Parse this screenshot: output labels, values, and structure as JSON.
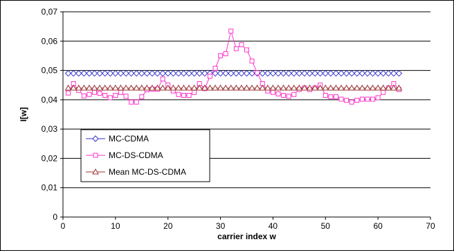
{
  "chart_data": {
    "type": "line",
    "xlabel": "carrier index w",
    "ylabel": "I[w]",
    "xlim": [
      0,
      70
    ],
    "ylim": [
      0,
      0.07
    ],
    "x_ticks": [
      "0",
      "10",
      "20",
      "30",
      "40",
      "50",
      "60",
      "70"
    ],
    "y_ticks": [
      "0",
      "0,01",
      "0,02",
      "0,03",
      "0,04",
      "0,05",
      "0,06",
      "0,07"
    ],
    "grid": "horizontal major gridlines",
    "legend_position": "lower-left",
    "series": [
      {
        "name": "MC-CDMA",
        "color": "#3333cc",
        "marker": "diamond",
        "x": [
          1,
          2,
          3,
          4,
          5,
          6,
          7,
          8,
          9,
          10,
          11,
          12,
          13,
          14,
          15,
          16,
          17,
          18,
          19,
          20,
          21,
          22,
          23,
          24,
          25,
          26,
          27,
          28,
          29,
          30,
          31,
          32,
          33,
          34,
          35,
          36,
          37,
          38,
          39,
          40,
          41,
          42,
          43,
          44,
          45,
          46,
          47,
          48,
          49,
          50,
          51,
          52,
          53,
          54,
          55,
          56,
          57,
          58,
          59,
          60,
          61,
          62,
          63,
          64
        ],
        "values": [
          0.049,
          0.049,
          0.049,
          0.049,
          0.049,
          0.049,
          0.049,
          0.049,
          0.049,
          0.049,
          0.049,
          0.049,
          0.049,
          0.049,
          0.049,
          0.049,
          0.049,
          0.049,
          0.049,
          0.049,
          0.049,
          0.049,
          0.049,
          0.049,
          0.049,
          0.049,
          0.049,
          0.049,
          0.049,
          0.049,
          0.049,
          0.049,
          0.049,
          0.049,
          0.049,
          0.049,
          0.049,
          0.049,
          0.049,
          0.049,
          0.049,
          0.049,
          0.049,
          0.049,
          0.049,
          0.049,
          0.049,
          0.049,
          0.049,
          0.049,
          0.049,
          0.049,
          0.049,
          0.049,
          0.049,
          0.049,
          0.049,
          0.049,
          0.049,
          0.049,
          0.049,
          0.049,
          0.049,
          0.049
        ]
      },
      {
        "name": "MC-DS-CDMA",
        "color": "#ff33cc",
        "marker": "square",
        "x": [
          1,
          2,
          3,
          4,
          5,
          6,
          7,
          8,
          9,
          10,
          11,
          12,
          13,
          14,
          15,
          16,
          17,
          18,
          19,
          20,
          21,
          22,
          23,
          24,
          25,
          26,
          27,
          28,
          29,
          30,
          31,
          32,
          33,
          34,
          35,
          36,
          37,
          38,
          39,
          40,
          41,
          42,
          43,
          44,
          45,
          46,
          47,
          48,
          49,
          50,
          51,
          52,
          53,
          54,
          55,
          56,
          57,
          58,
          59,
          60,
          61,
          62,
          63,
          64
        ],
        "values": [
          0.0423,
          0.0455,
          0.0432,
          0.0413,
          0.0418,
          0.0425,
          0.0422,
          0.0415,
          0.0407,
          0.0415,
          0.0425,
          0.0412,
          0.0392,
          0.0392,
          0.041,
          0.0434,
          0.0436,
          0.0436,
          0.0471,
          0.045,
          0.043,
          0.0418,
          0.0415,
          0.0415,
          0.0425,
          0.0455,
          0.0438,
          0.048,
          0.0507,
          0.055,
          0.0557,
          0.0634,
          0.0574,
          0.0588,
          0.057,
          0.0532,
          0.0492,
          0.0455,
          0.043,
          0.0425,
          0.042,
          0.0415,
          0.0412,
          0.0418,
          0.0435,
          0.044,
          0.0435,
          0.044,
          0.045,
          0.0415,
          0.041,
          0.041,
          0.0402,
          0.0398,
          0.0392,
          0.0398,
          0.0402,
          0.0402,
          0.0402,
          0.0407,
          0.0425,
          0.044,
          0.0455,
          0.0435
        ]
      },
      {
        "name": "Mean MC-DS-CDMA",
        "color": "#993333",
        "marker": "triangle",
        "x": [
          1,
          2,
          3,
          4,
          5,
          6,
          7,
          8,
          9,
          10,
          11,
          12,
          13,
          14,
          15,
          16,
          17,
          18,
          19,
          20,
          21,
          22,
          23,
          24,
          25,
          26,
          27,
          28,
          29,
          30,
          31,
          32,
          33,
          34,
          35,
          36,
          37,
          38,
          39,
          40,
          41,
          42,
          43,
          44,
          45,
          46,
          47,
          48,
          49,
          50,
          51,
          52,
          53,
          54,
          55,
          56,
          57,
          58,
          59,
          60,
          61,
          62,
          63,
          64
        ],
        "values": [
          0.044,
          0.044,
          0.044,
          0.044,
          0.044,
          0.044,
          0.044,
          0.044,
          0.044,
          0.044,
          0.044,
          0.044,
          0.044,
          0.044,
          0.044,
          0.044,
          0.044,
          0.044,
          0.044,
          0.044,
          0.044,
          0.044,
          0.044,
          0.044,
          0.044,
          0.044,
          0.044,
          0.044,
          0.044,
          0.044,
          0.044,
          0.044,
          0.044,
          0.044,
          0.044,
          0.044,
          0.044,
          0.044,
          0.044,
          0.044,
          0.044,
          0.044,
          0.044,
          0.044,
          0.044,
          0.044,
          0.044,
          0.044,
          0.044,
          0.044,
          0.044,
          0.044,
          0.044,
          0.044,
          0.044,
          0.044,
          0.044,
          0.044,
          0.044,
          0.044,
          0.044,
          0.044,
          0.044,
          0.044
        ]
      }
    ]
  }
}
